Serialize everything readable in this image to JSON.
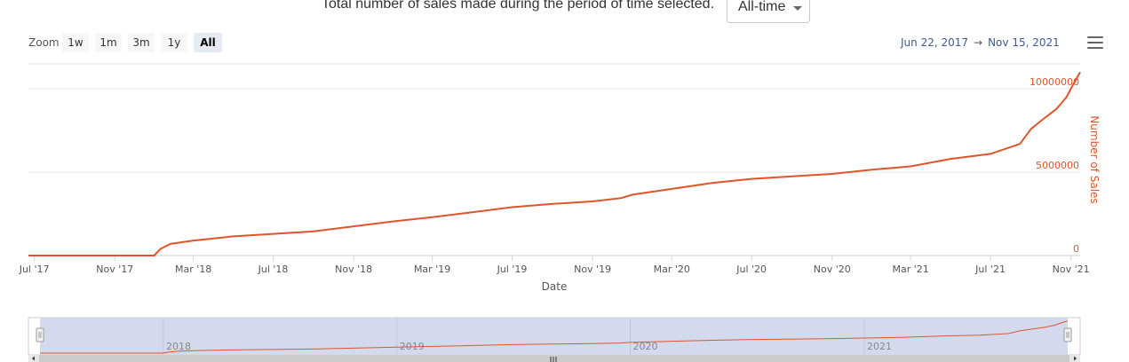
{
  "header": {
    "caption": "Total number of sales made during the period of time selected.",
    "period_select": {
      "value": "All-time"
    }
  },
  "toolbar": {
    "zoom_label": "Zoom",
    "zoom_buttons": [
      "1w",
      "1m",
      "3m",
      "1y",
      "All"
    ],
    "active_zoom": "All",
    "range_from": "Jun 22, 2017",
    "range_to": "Nov 15, 2021",
    "range_arrow": "→"
  },
  "chart_data": {
    "type": "line",
    "xlabel": "Date",
    "ylabel": "Number of Sales",
    "x_ticks": [
      "Jul '17",
      "Nov '17",
      "Mar '18",
      "Jul '18",
      "Nov '18",
      "Mar '19",
      "Jul '19",
      "Nov '19",
      "Mar '20",
      "Jul '20",
      "Nov '20",
      "Mar '21",
      "Jul '21",
      "Nov '21"
    ],
    "y_ticks": [
      "0",
      "5000000",
      "10000000"
    ],
    "ylim": [
      0,
      11500000
    ],
    "xlim": [
      "2017-06-22",
      "2021-11-15"
    ],
    "grid": true,
    "series_color": "#e0542a",
    "series": [
      {
        "points": [
          [
            "2017-06-22",
            0
          ],
          [
            "2017-12-31",
            0
          ],
          [
            "2018-01-10",
            400000
          ],
          [
            "2018-01-25",
            700000
          ],
          [
            "2018-03-01",
            900000
          ],
          [
            "2018-05-01",
            1150000
          ],
          [
            "2018-07-01",
            1300000
          ],
          [
            "2018-09-01",
            1450000
          ],
          [
            "2018-11-01",
            1750000
          ],
          [
            "2019-01-01",
            2050000
          ],
          [
            "2019-03-01",
            2300000
          ],
          [
            "2019-05-01",
            2600000
          ],
          [
            "2019-07-01",
            2900000
          ],
          [
            "2019-09-01",
            3100000
          ],
          [
            "2019-11-01",
            3250000
          ],
          [
            "2019-12-15",
            3450000
          ],
          [
            "2020-01-01",
            3650000
          ],
          [
            "2020-03-01",
            4000000
          ],
          [
            "2020-05-01",
            4350000
          ],
          [
            "2020-07-01",
            4600000
          ],
          [
            "2020-09-01",
            4750000
          ],
          [
            "2020-11-01",
            4900000
          ],
          [
            "2021-01-01",
            5150000
          ],
          [
            "2021-03-01",
            5350000
          ],
          [
            "2021-05-01",
            5800000
          ],
          [
            "2021-07-01",
            6100000
          ],
          [
            "2021-08-15",
            6700000
          ],
          [
            "2021-09-01",
            7600000
          ],
          [
            "2021-09-20",
            8200000
          ],
          [
            "2021-10-10",
            8800000
          ],
          [
            "2021-10-25",
            9500000
          ],
          [
            "2021-11-05",
            10300000
          ],
          [
            "2021-11-15",
            11000000
          ]
        ]
      }
    ]
  },
  "navigator": {
    "years": [
      "2018",
      "2019",
      "2020",
      "2021"
    ]
  }
}
